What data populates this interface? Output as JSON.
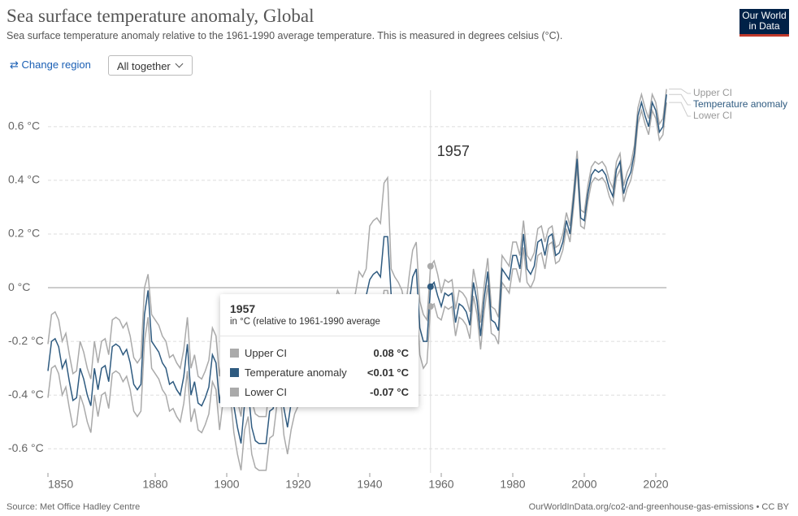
{
  "header": {
    "title": "Sea surface temperature anomaly, Global",
    "subtitle": "Sea surface temperature anomaly relative to the 1961-1990 average temperature. This is measured in degrees celsius (°C).",
    "logo": [
      "Our World",
      "in Data"
    ]
  },
  "controls": {
    "change_region": "Change region",
    "view": "All together"
  },
  "footer": {
    "source": "Source: Met Office Hadley Centre",
    "url": "OurWorldInData.org/co2-and-greenhouse-gas-emissions • CC BY"
  },
  "chart_data": {
    "type": "line",
    "x": [
      1850,
      1851,
      1852,
      1853,
      1854,
      1855,
      1856,
      1857,
      1858,
      1859,
      1860,
      1861,
      1862,
      1863,
      1864,
      1865,
      1866,
      1867,
      1868,
      1869,
      1870,
      1871,
      1872,
      1873,
      1874,
      1875,
      1876,
      1877,
      1878,
      1879,
      1880,
      1881,
      1882,
      1883,
      1884,
      1885,
      1886,
      1887,
      1888,
      1889,
      1890,
      1891,
      1892,
      1893,
      1894,
      1895,
      1896,
      1897,
      1898,
      1899,
      1900,
      1901,
      1902,
      1903,
      1904,
      1905,
      1906,
      1907,
      1908,
      1909,
      1910,
      1911,
      1912,
      1913,
      1914,
      1915,
      1916,
      1917,
      1918,
      1919,
      1920,
      1921,
      1922,
      1923,
      1924,
      1925,
      1926,
      1927,
      1928,
      1929,
      1930,
      1931,
      1932,
      1933,
      1934,
      1935,
      1936,
      1937,
      1938,
      1939,
      1940,
      1941,
      1942,
      1943,
      1944,
      1945,
      1946,
      1947,
      1948,
      1949,
      1950,
      1951,
      1952,
      1953,
      1954,
      1955,
      1956,
      1957,
      1958,
      1959,
      1960,
      1961,
      1962,
      1963,
      1964,
      1965,
      1966,
      1967,
      1968,
      1969,
      1970,
      1971,
      1972,
      1973,
      1974,
      1975,
      1976,
      1977,
      1978,
      1979,
      1980,
      1981,
      1982,
      1983,
      1984,
      1985,
      1986,
      1987,
      1988,
      1989,
      1990,
      1991,
      1992,
      1993,
      1994,
      1995,
      1996,
      1997,
      1998,
      1999,
      2000,
      2001,
      2002,
      2003,
      2004,
      2005,
      2006,
      2007,
      2008,
      2009,
      2010,
      2011,
      2012,
      2013,
      2014,
      2015,
      2016,
      2017,
      2018,
      2019,
      2020,
      2021,
      2022,
      2023
    ],
    "series": [
      {
        "name": "Upper CI",
        "color": "#aaaaaa",
        "values": [
          -0.21,
          -0.1,
          -0.09,
          -0.12,
          -0.2,
          -0.17,
          -0.25,
          -0.32,
          -0.31,
          -0.2,
          -0.24,
          -0.3,
          -0.34,
          -0.2,
          -0.28,
          -0.2,
          -0.19,
          -0.25,
          -0.12,
          -0.11,
          -0.12,
          -0.15,
          -0.13,
          -0.18,
          -0.26,
          -0.28,
          -0.26,
          0.0,
          0.05,
          -0.1,
          -0.12,
          -0.14,
          -0.18,
          -0.2,
          -0.26,
          -0.25,
          -0.28,
          -0.3,
          -0.23,
          -0.11,
          -0.3,
          -0.25,
          -0.33,
          -0.34,
          -0.31,
          -0.27,
          -0.15,
          -0.18,
          -0.33,
          -0.22,
          -0.15,
          -0.2,
          -0.34,
          -0.42,
          -0.48,
          -0.33,
          -0.28,
          -0.42,
          -0.47,
          -0.48,
          -0.48,
          -0.48,
          -0.36,
          -0.35,
          -0.24,
          -0.2,
          -0.35,
          -0.42,
          -0.33,
          -0.27,
          -0.24,
          -0.18,
          -0.22,
          -0.2,
          -0.19,
          -0.17,
          -0.08,
          -0.14,
          -0.13,
          -0.22,
          -0.07,
          -0.01,
          -0.04,
          -0.14,
          -0.03,
          -0.07,
          -0.02,
          0.06,
          0.04,
          0.07,
          0.23,
          0.25,
          0.26,
          0.24,
          0.39,
          0.41,
          0.07,
          0.04,
          0.02,
          -0.01,
          -0.08,
          0.04,
          0.14,
          0.17,
          -0.05,
          -0.1,
          -0.12,
          0.08,
          0.1,
          0.05,
          -0.02,
          0.03,
          0.02,
          0.03,
          -0.08,
          -0.01,
          -0.02,
          -0.04,
          -0.09,
          0.07,
          0.0,
          -0.13,
          0.01,
          0.11,
          -0.07,
          -0.08,
          -0.11,
          0.12,
          0.1,
          0.08,
          0.17,
          0.17,
          0.12,
          0.25,
          0.12,
          0.1,
          0.13,
          0.22,
          0.23,
          0.17,
          0.22,
          0.23,
          0.15,
          0.16,
          0.2,
          0.28,
          0.23,
          0.36,
          0.51,
          0.29,
          0.28,
          0.38,
          0.45,
          0.47,
          0.46,
          0.47,
          0.45,
          0.4,
          0.37,
          0.47,
          0.5,
          0.38,
          0.43,
          0.46,
          0.53,
          0.67,
          0.72,
          0.67,
          0.63,
          0.72,
          0.69,
          0.61,
          0.63,
          0.74
        ]
      },
      {
        "name": "Temperature anomaly",
        "color": "#2f5b80",
        "values": [
          -0.31,
          -0.2,
          -0.19,
          -0.22,
          -0.3,
          -0.27,
          -0.35,
          -0.42,
          -0.41,
          -0.3,
          -0.34,
          -0.4,
          -0.44,
          -0.3,
          -0.38,
          -0.3,
          -0.29,
          -0.35,
          -0.22,
          -0.21,
          -0.22,
          -0.25,
          -0.23,
          -0.28,
          -0.36,
          -0.38,
          -0.36,
          -0.1,
          -0.01,
          -0.2,
          -0.22,
          -0.24,
          -0.28,
          -0.3,
          -0.36,
          -0.35,
          -0.38,
          -0.4,
          -0.33,
          -0.21,
          -0.4,
          -0.35,
          -0.43,
          -0.44,
          -0.41,
          -0.37,
          -0.25,
          -0.28,
          -0.43,
          -0.32,
          -0.25,
          -0.3,
          -0.44,
          -0.52,
          -0.58,
          -0.43,
          -0.38,
          -0.52,
          -0.57,
          -0.58,
          -0.58,
          -0.58,
          -0.46,
          -0.45,
          -0.34,
          -0.3,
          -0.45,
          -0.52,
          -0.43,
          -0.37,
          -0.34,
          -0.28,
          -0.32,
          -0.3,
          -0.29,
          -0.27,
          -0.18,
          -0.24,
          -0.23,
          -0.32,
          -0.17,
          -0.11,
          -0.14,
          -0.24,
          -0.13,
          -0.17,
          -0.12,
          -0.04,
          -0.06,
          -0.03,
          0.03,
          0.05,
          0.06,
          0.04,
          0.19,
          0.19,
          -0.03,
          -0.06,
          -0.08,
          -0.11,
          -0.18,
          -0.06,
          0.04,
          0.07,
          -0.15,
          -0.2,
          -0.2,
          0.004,
          0.02,
          -0.03,
          -0.07,
          -0.02,
          -0.03,
          -0.02,
          -0.13,
          -0.06,
          -0.07,
          -0.09,
          -0.14,
          0.02,
          -0.05,
          -0.18,
          -0.04,
          0.06,
          -0.12,
          -0.13,
          -0.16,
          0.07,
          0.05,
          0.03,
          0.12,
          0.12,
          0.07,
          0.2,
          0.07,
          0.05,
          0.08,
          0.17,
          0.18,
          0.12,
          0.19,
          0.2,
          0.12,
          0.13,
          0.17,
          0.25,
          0.2,
          0.33,
          0.48,
          0.26,
          0.25,
          0.35,
          0.42,
          0.44,
          0.43,
          0.44,
          0.42,
          0.37,
          0.34,
          0.44,
          0.47,
          0.35,
          0.4,
          0.43,
          0.5,
          0.64,
          0.69,
          0.64,
          0.6,
          0.69,
          0.66,
          0.58,
          0.6,
          0.72
        ]
      },
      {
        "name": "Lower CI",
        "color": "#aaaaaa",
        "values": [
          -0.41,
          -0.3,
          -0.29,
          -0.32,
          -0.4,
          -0.37,
          -0.45,
          -0.52,
          -0.51,
          -0.4,
          -0.44,
          -0.5,
          -0.54,
          -0.4,
          -0.48,
          -0.4,
          -0.39,
          -0.45,
          -0.32,
          -0.31,
          -0.32,
          -0.35,
          -0.33,
          -0.38,
          -0.46,
          -0.48,
          -0.46,
          -0.2,
          -0.11,
          -0.3,
          -0.32,
          -0.34,
          -0.38,
          -0.4,
          -0.46,
          -0.45,
          -0.48,
          -0.5,
          -0.43,
          -0.31,
          -0.5,
          -0.45,
          -0.53,
          -0.54,
          -0.51,
          -0.47,
          -0.35,
          -0.38,
          -0.53,
          -0.42,
          -0.35,
          -0.4,
          -0.54,
          -0.62,
          -0.68,
          -0.53,
          -0.48,
          -0.62,
          -0.67,
          -0.68,
          -0.68,
          -0.68,
          -0.56,
          -0.55,
          -0.44,
          -0.4,
          -0.55,
          -0.62,
          -0.53,
          -0.47,
          -0.44,
          -0.38,
          -0.42,
          -0.4,
          -0.39,
          -0.37,
          -0.28,
          -0.34,
          -0.33,
          -0.42,
          -0.27,
          -0.21,
          -0.24,
          -0.34,
          -0.23,
          -0.27,
          -0.22,
          -0.14,
          -0.16,
          -0.13,
          -0.17,
          -0.15,
          -0.14,
          -0.16,
          -0.01,
          -0.01,
          -0.13,
          -0.16,
          -0.18,
          -0.21,
          -0.28,
          -0.16,
          -0.06,
          -0.03,
          -0.25,
          -0.3,
          -0.28,
          -0.07,
          -0.06,
          -0.11,
          -0.12,
          -0.07,
          -0.08,
          -0.07,
          -0.18,
          -0.11,
          -0.12,
          -0.14,
          -0.19,
          -0.03,
          -0.1,
          -0.23,
          -0.09,
          0.01,
          -0.17,
          -0.18,
          -0.21,
          0.02,
          0.0,
          -0.02,
          0.07,
          0.07,
          0.02,
          0.15,
          0.02,
          0.0,
          0.03,
          0.12,
          0.13,
          0.07,
          0.16,
          0.17,
          0.09,
          0.1,
          0.14,
          0.22,
          0.17,
          0.3,
          0.45,
          0.23,
          0.22,
          0.32,
          0.39,
          0.41,
          0.4,
          0.41,
          0.39,
          0.34,
          0.31,
          0.41,
          0.44,
          0.32,
          0.37,
          0.4,
          0.47,
          0.61,
          0.66,
          0.61,
          0.57,
          0.66,
          0.63,
          0.55,
          0.57,
          0.69
        ]
      }
    ],
    "xlim": [
      1850,
      2023
    ],
    "ylim": [
      -0.69,
      0.76
    ],
    "xticks": [
      1850,
      1880,
      1900,
      1920,
      1940,
      1960,
      1980,
      2000,
      2020
    ],
    "yticks": [
      {
        "value": -0.6,
        "label": "-0.6 °C"
      },
      {
        "value": -0.4,
        "label": "-0.4 °C"
      },
      {
        "value": -0.2,
        "label": "-0.2 °C"
      },
      {
        "value": 0,
        "label": "0 °C"
      },
      {
        "value": 0.2,
        "label": "0.2 °C"
      },
      {
        "value": 0.4,
        "label": "0.4 °C"
      },
      {
        "value": 0.6,
        "label": "0.6 °C"
      }
    ],
    "grid": true,
    "hover_year": 1957,
    "tooltip": {
      "subtitle": "in °C (relative to 1961-1990 average",
      "value_labels": [
        "0.08 °C",
        "<0.01 °C",
        "-0.07 °C"
      ]
    }
  }
}
